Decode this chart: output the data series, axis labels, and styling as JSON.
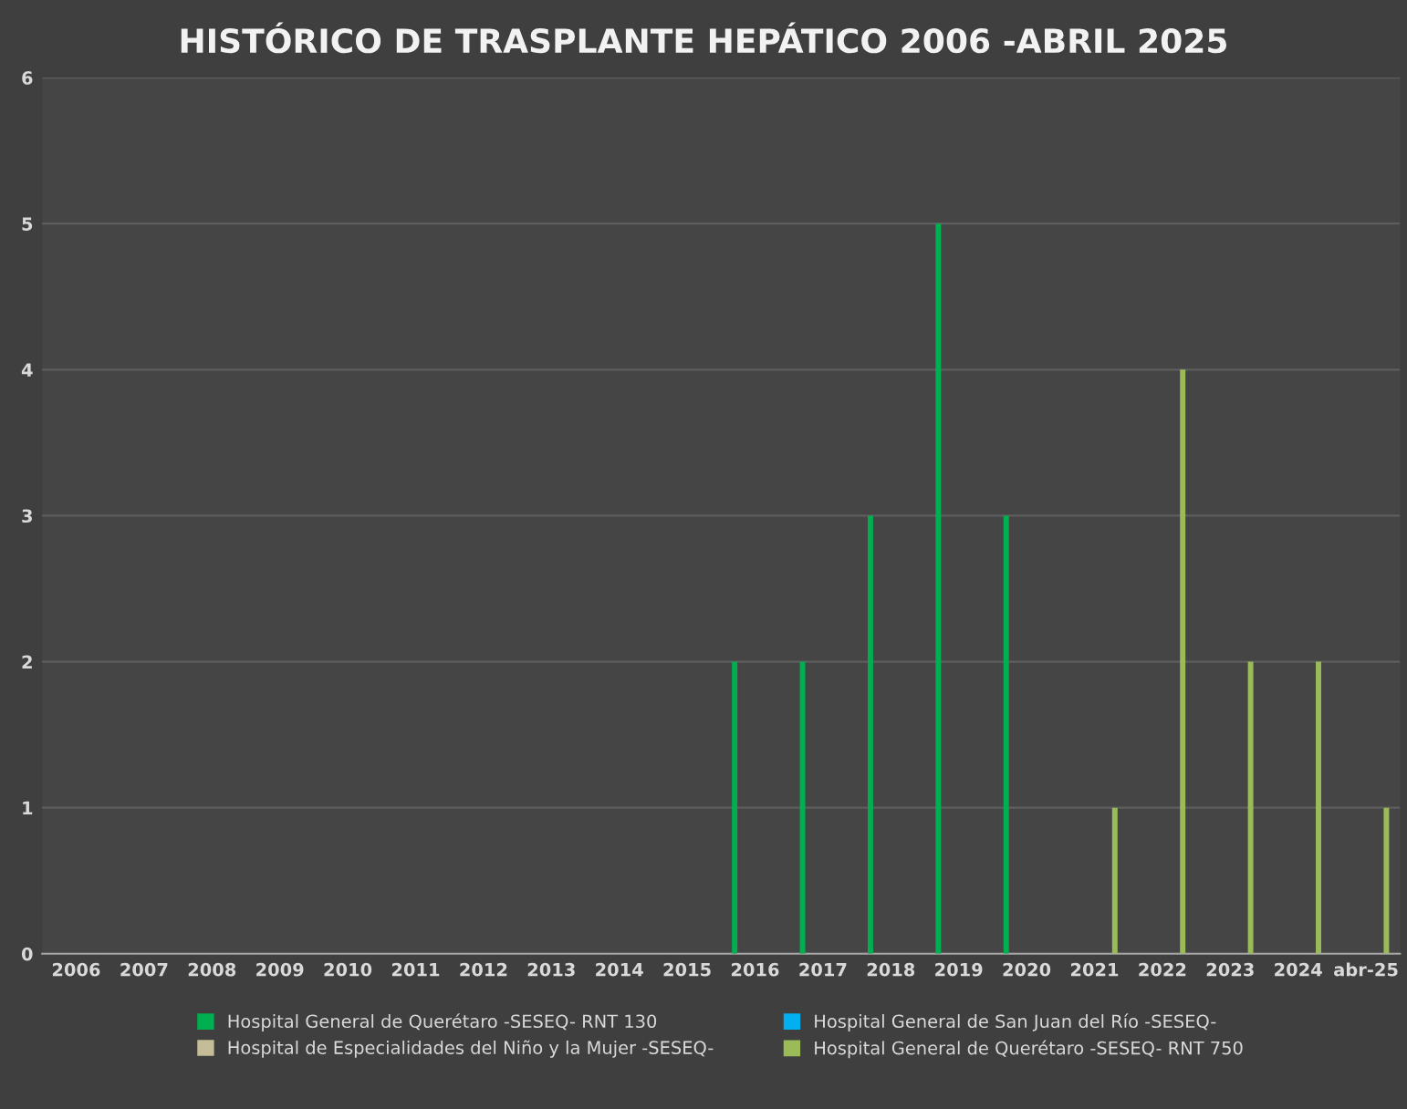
{
  "chart_data": {
    "type": "bar",
    "title": "HISTÓRICO DE TRASPLANTE HEPÁTICO 2006 -ABRIL 2025",
    "categories": [
      "2006",
      "2007",
      "2008",
      "2009",
      "2010",
      "2011",
      "2012",
      "2013",
      "2014",
      "2015",
      "2016",
      "2017",
      "2018",
      "2019",
      "2020",
      "2021",
      "2022",
      "2023",
      "2024",
      "abr-25"
    ],
    "series": [
      {
        "name": "Hospital General de Querétaro -SESEQ- RNT 130",
        "color": "#00b050",
        "values": [
          null,
          null,
          null,
          null,
          null,
          null,
          null,
          null,
          null,
          null,
          2,
          2,
          3,
          5,
          3,
          null,
          null,
          null,
          null,
          null
        ]
      },
      {
        "name": "Hospital de Especialidades del Niño y la Mujer -SESEQ-",
        "color": "#c4bd97",
        "values": [
          null,
          null,
          null,
          null,
          null,
          null,
          null,
          null,
          null,
          null,
          null,
          null,
          null,
          null,
          null,
          null,
          null,
          null,
          null,
          null
        ]
      },
      {
        "name": "Hospital General de San Juan del Río -SESEQ-",
        "color": "#00b0f0",
        "values": [
          null,
          null,
          null,
          null,
          null,
          null,
          null,
          null,
          null,
          null,
          null,
          null,
          null,
          null,
          null,
          null,
          null,
          null,
          null,
          null
        ]
      },
      {
        "name": "Hospital General de Querétaro -SESEQ- RNT 750",
        "color": "#9bbb59",
        "values": [
          null,
          null,
          null,
          null,
          null,
          null,
          null,
          null,
          null,
          null,
          null,
          null,
          null,
          null,
          null,
          1,
          4,
          2,
          2,
          1
        ]
      }
    ],
    "ylim": [
      0,
      6
    ],
    "yticks": [
      0,
      1,
      2,
      3,
      4,
      5,
      6
    ],
    "grid": "y",
    "legend": "bottom"
  }
}
